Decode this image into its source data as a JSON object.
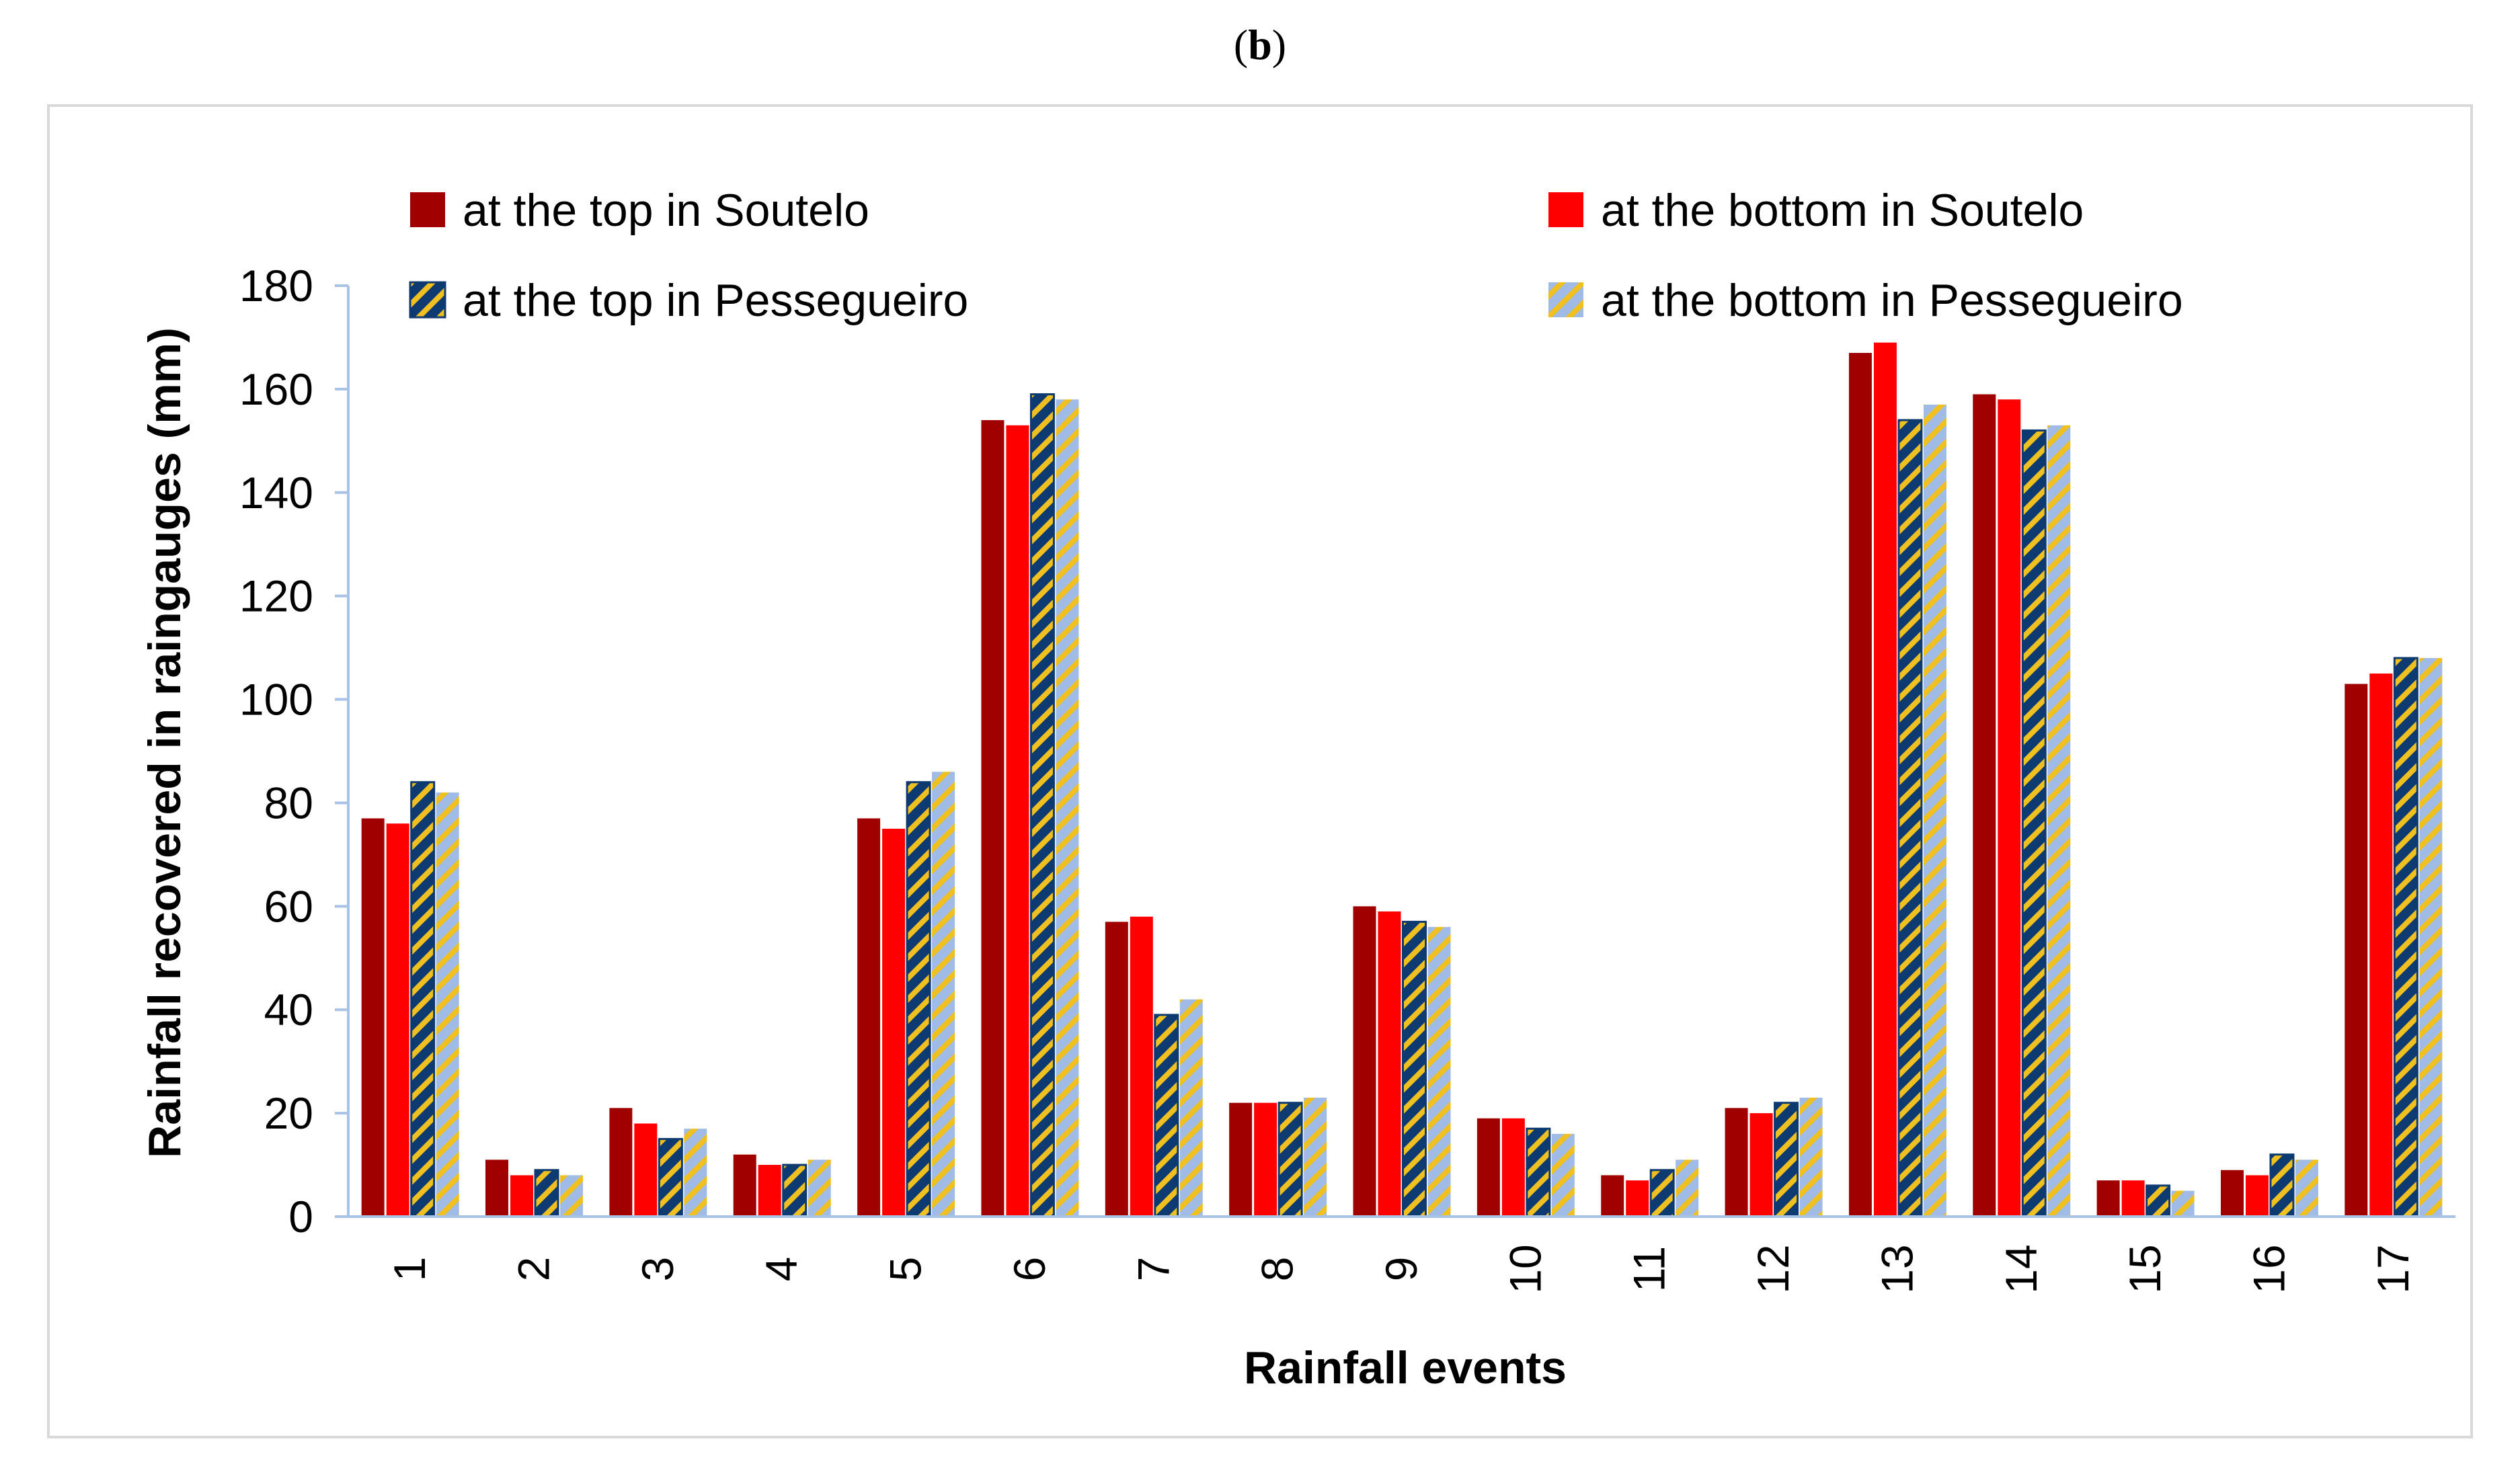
{
  "panel_label": {
    "open": "(",
    "letter": "b",
    "close": ")"
  },
  "colors": {
    "top_soutelo": "#a00000",
    "bottom_soutelo": "#ff0000",
    "top_pessegueiro": "#0d3a70",
    "top_pessegueiro_hatch": "#f0c020",
    "bottom_pessegueiro": "#9fbbe6",
    "bottom_pessegueiro_hatch": "#f0c020",
    "axis": "#a9c3e6"
  },
  "chart_data": {
    "type": "bar",
    "title": "",
    "xlabel": "Rainfall events",
    "ylabel": "Rainfall recovered in raingauges (mm)",
    "ylim": [
      0,
      180
    ],
    "yticks": [
      0,
      20,
      40,
      60,
      80,
      100,
      120,
      140,
      160,
      180
    ],
    "grid": false,
    "legend_position": "top",
    "categories": [
      "1",
      "2",
      "3",
      "4",
      "5",
      "6",
      "7",
      "8",
      "9",
      "10",
      "11",
      "12",
      "13",
      "14",
      "15",
      "16",
      "17"
    ],
    "series": [
      {
        "name": "at the top in Soutelo",
        "values": [
          77,
          11,
          21,
          12,
          77,
          154,
          57,
          22,
          60,
          19,
          8,
          21,
          167,
          159,
          7,
          9,
          103
        ]
      },
      {
        "name": "at the bottom in Soutelo",
        "values": [
          76,
          8,
          18,
          10,
          75,
          153,
          58,
          22,
          59,
          19,
          7,
          20,
          169,
          158,
          7,
          8,
          105
        ]
      },
      {
        "name": "at the top in Pessegueiro",
        "values": [
          84,
          9,
          15,
          10,
          84,
          159,
          39,
          22,
          57,
          17,
          9,
          22,
          154,
          152,
          6,
          12,
          108
        ]
      },
      {
        "name": "at the bottom in Pessegueiro",
        "values": [
          82,
          8,
          17,
          11,
          86,
          158,
          42,
          23,
          56,
          16,
          11,
          23,
          157,
          153,
          5,
          11,
          108
        ]
      }
    ]
  }
}
